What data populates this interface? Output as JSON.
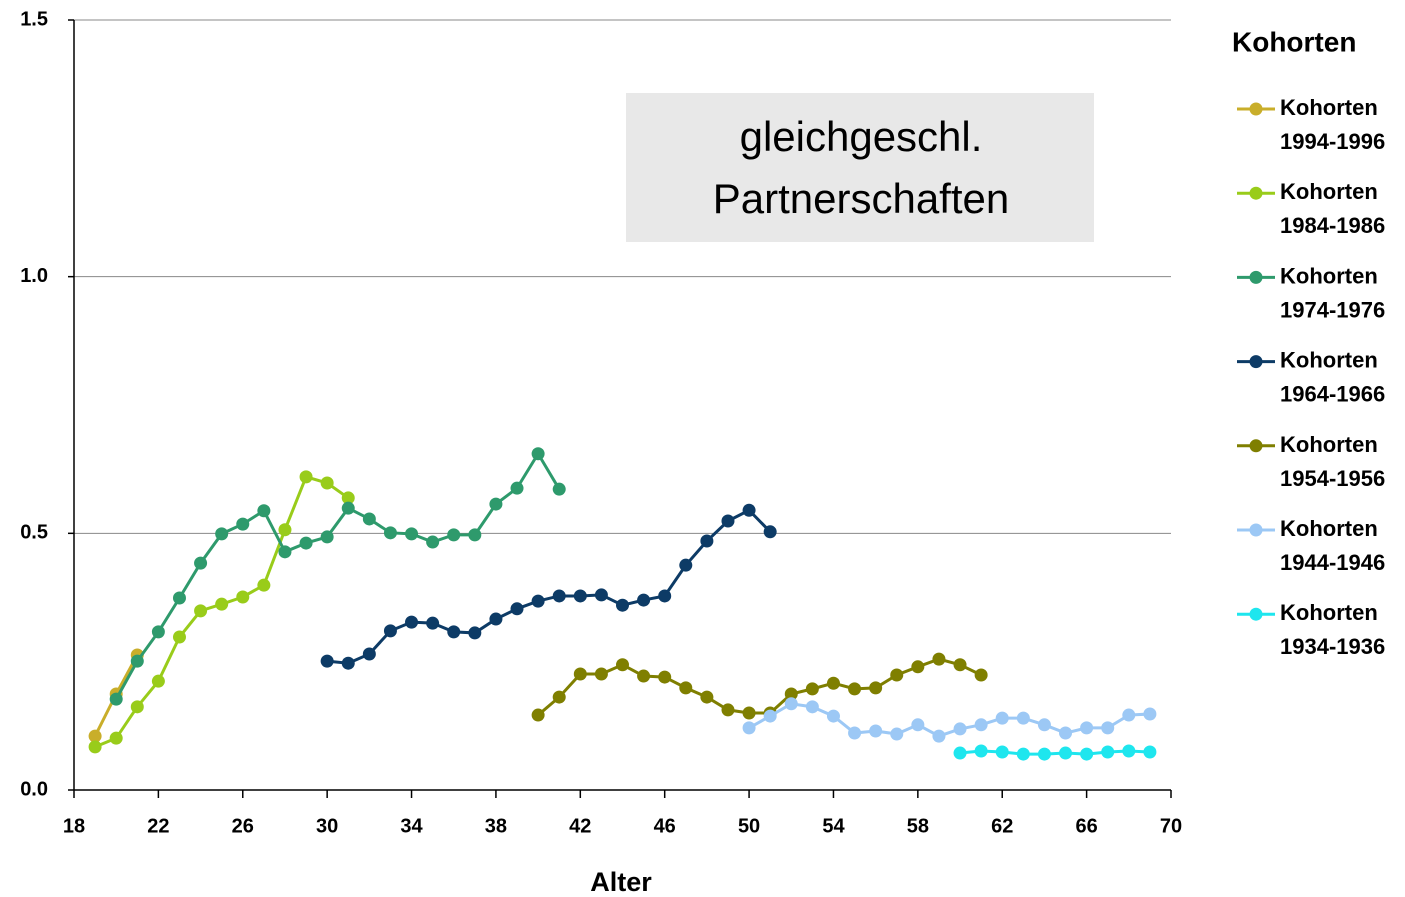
{
  "chart_data": {
    "type": "line",
    "xlabel": "Alter",
    "annotation": [
      "gleichgeschl.",
      "Partnerschaften"
    ],
    "legend_title": "Kohorten",
    "legend": "right",
    "grid": true,
    "xlim": [
      18,
      70
    ],
    "xticks": [
      18,
      22,
      26,
      30,
      34,
      38,
      42,
      46,
      50,
      54,
      58,
      62,
      66,
      70
    ],
    "ylim": [
      0,
      1.5
    ],
    "yticks": [
      {
        "value": 0,
        "label": "0.0"
      },
      0.5,
      {
        "value": 1,
        "label": "1.0"
      },
      1.5
    ],
    "series": [
      {
        "name": "Kohorten 1994-1996",
        "color": "#c9ae2a",
        "x": [
          19,
          20,
          21
        ],
        "values": [
          0.105,
          0.187,
          0.263
        ]
      },
      {
        "name": "Kohorten 1984-1986",
        "color": "#99cc1a",
        "x": [
          19,
          20,
          21,
          22,
          23,
          24,
          25,
          26,
          27,
          28,
          29,
          30,
          31
        ],
        "values": [
          0.084,
          0.101,
          0.162,
          0.212,
          0.298,
          0.349,
          0.362,
          0.376,
          0.399,
          0.507,
          0.61,
          0.598,
          0.569
        ]
      },
      {
        "name": "Kohorten 1974-1976",
        "color": "#2e9a6c",
        "x": [
          20,
          21,
          22,
          23,
          24,
          25,
          26,
          27,
          28,
          29,
          30,
          31,
          32,
          33,
          34,
          35,
          36,
          37,
          38,
          39,
          40,
          41
        ],
        "values": [
          0.177,
          0.251,
          0.308,
          0.374,
          0.442,
          0.499,
          0.518,
          0.544,
          0.464,
          0.481,
          0.493,
          0.549,
          0.528,
          0.501,
          0.499,
          0.483,
          0.497,
          0.497,
          0.557,
          0.588,
          0.655,
          0.586
        ]
      },
      {
        "name": "Kohorten 1964-1966",
        "color": "#0d3b66",
        "x": [
          30,
          31,
          32,
          33,
          34,
          35,
          36,
          37,
          38,
          39,
          40,
          41,
          42,
          43,
          44,
          45,
          46,
          47,
          48,
          49,
          50,
          51
        ],
        "values": [
          0.251,
          0.247,
          0.265,
          0.31,
          0.327,
          0.325,
          0.308,
          0.306,
          0.333,
          0.353,
          0.368,
          0.378,
          0.378,
          0.38,
          0.36,
          0.37,
          0.378,
          0.438,
          0.485,
          0.524,
          0.545,
          0.503
        ]
      },
      {
        "name": "Kohorten 1954-1956",
        "color": "#7f7f00",
        "x": [
          40,
          41,
          42,
          43,
          44,
          45,
          46,
          47,
          48,
          49,
          50,
          51,
          52,
          53,
          54,
          55,
          56,
          57,
          58,
          59,
          60,
          61
        ],
        "values": [
          0.146,
          0.181,
          0.226,
          0.226,
          0.244,
          0.222,
          0.22,
          0.199,
          0.181,
          0.156,
          0.15,
          0.15,
          0.187,
          0.197,
          0.208,
          0.197,
          0.199,
          0.224,
          0.24,
          0.255,
          0.244,
          0.224
        ]
      },
      {
        "name": "Kohorten 1944-1946",
        "color": "#9cc8f5",
        "x": [
          50,
          51,
          52,
          53,
          54,
          55,
          56,
          57,
          58,
          59,
          60,
          61,
          62,
          63,
          64,
          65,
          66,
          67,
          68,
          69
        ],
        "values": [
          0.121,
          0.144,
          0.168,
          0.162,
          0.144,
          0.111,
          0.115,
          0.109,
          0.127,
          0.105,
          0.119,
          0.127,
          0.14,
          0.14,
          0.127,
          0.111,
          0.121,
          0.121,
          0.146,
          0.148
        ]
      },
      {
        "name": "Kohorten 1934-1936",
        "color": "#1ee6ee",
        "x": [
          60,
          61,
          62,
          63,
          64,
          65,
          66,
          67,
          68,
          69
        ],
        "values": [
          0.072,
          0.076,
          0.074,
          0.07,
          0.07,
          0.072,
          0.07,
          0.074,
          0.076,
          0.074
        ]
      }
    ]
  }
}
